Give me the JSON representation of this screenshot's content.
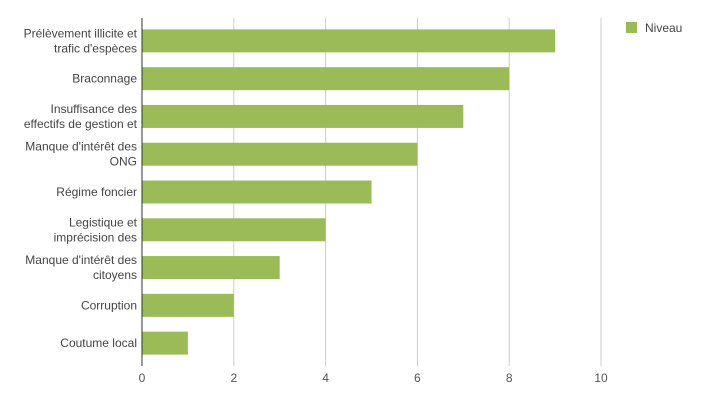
{
  "chart_data": {
    "type": "bar",
    "orientation": "horizontal",
    "categories": [
      [
        "Prélèvement illicite et",
        "trafic d'espèces"
      ],
      [
        "Braconnage"
      ],
      [
        "Insuffisance des",
        "effectifs de gestion et"
      ],
      [
        "Manque d'intérêt des",
        "ONG"
      ],
      [
        "Régime foncier"
      ],
      [
        "Legistique et",
        "imprécision des"
      ],
      [
        "Manque d'intérêt des",
        "citoyens"
      ],
      [
        "Corruption"
      ],
      [
        "Coutume local"
      ]
    ],
    "series": [
      {
        "name": "Niveau",
        "values": [
          9,
          8,
          7,
          6,
          5,
          4,
          3,
          2,
          1
        ]
      }
    ],
    "xlim": [
      0,
      10
    ],
    "xticks": [
      0,
      2,
      4,
      6,
      8,
      10
    ],
    "grid": true,
    "legend_position": "top-right",
    "colors": {
      "bar": "#9bbb59",
      "grid": "#cccccc",
      "axis": "#333333"
    }
  }
}
